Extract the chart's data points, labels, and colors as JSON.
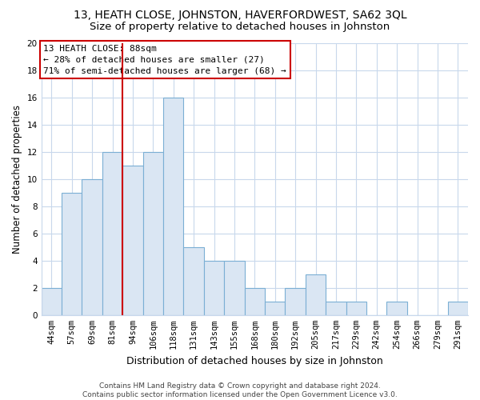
{
  "title": "13, HEATH CLOSE, JOHNSTON, HAVERFORDWEST, SA62 3QL",
  "subtitle": "Size of property relative to detached houses in Johnston",
  "xlabel": "Distribution of detached houses by size in Johnston",
  "ylabel": "Number of detached properties",
  "categories": [
    "44sqm",
    "57sqm",
    "69sqm",
    "81sqm",
    "94sqm",
    "106sqm",
    "118sqm",
    "131sqm",
    "143sqm",
    "155sqm",
    "168sqm",
    "180sqm",
    "192sqm",
    "205sqm",
    "217sqm",
    "229sqm",
    "242sqm",
    "254sqm",
    "266sqm",
    "279sqm",
    "291sqm"
  ],
  "values": [
    2,
    9,
    10,
    12,
    11,
    12,
    16,
    5,
    4,
    4,
    2,
    1,
    2,
    3,
    1,
    1,
    0,
    1,
    0,
    0,
    1
  ],
  "bar_color": "#dae6f3",
  "bar_edge_color": "#7bafd4",
  "vline_color": "#cc0000",
  "vline_pos": 3.5,
  "ylim": [
    0,
    20
  ],
  "yticks": [
    0,
    2,
    4,
    6,
    8,
    10,
    12,
    14,
    16,
    18,
    20
  ],
  "annotation_line1": "13 HEATH CLOSE: 88sqm",
  "annotation_line2": "← 28% of detached houses are smaller (27)",
  "annotation_line3": "71% of semi-detached houses are larger (68) →",
  "annotation_box_facecolor": "#ffffff",
  "annotation_box_edgecolor": "#cc0000",
  "footer_line1": "Contains HM Land Registry data © Crown copyright and database right 2024.",
  "footer_line2": "Contains public sector information licensed under the Open Government Licence v3.0.",
  "title_fontsize": 10,
  "subtitle_fontsize": 9.5,
  "xlabel_fontsize": 9,
  "ylabel_fontsize": 8.5,
  "tick_fontsize": 7.5,
  "annotation_fontsize": 8,
  "footer_fontsize": 6.5,
  "background_color": "#ffffff",
  "grid_color": "#c8d8ec",
  "grid_alpha": 0.9
}
